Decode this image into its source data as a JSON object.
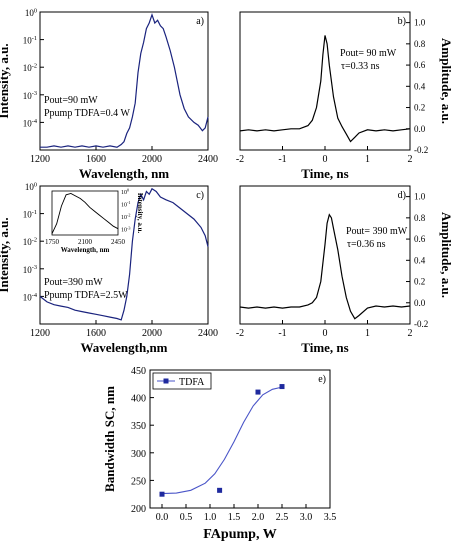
{
  "colors": {
    "spectrum": "#1a237e",
    "trace": "#000000",
    "fit": "#4a55c8",
    "marker": "#1f2a9e"
  },
  "chart_data": [
    {
      "id": "a",
      "type": "line",
      "panel_label": "a)",
      "xlabel": "Wavelength, nm",
      "ylabel": "Intensity, a.u.",
      "x_ticks": [
        "1200",
        "1600",
        "2000",
        "2400"
      ],
      "y_ticks": [
        "10^-4",
        "10^-3",
        "10^-2",
        "10^-1",
        "10^0"
      ],
      "xlim": [
        1200,
        2400
      ],
      "ylim_log10": [
        -5,
        0
      ],
      "yscale": "log",
      "annotations": [
        "Pout=90 mW",
        "Ppump TDFA=0.4 W"
      ],
      "x": [
        1200,
        1250,
        1300,
        1350,
        1400,
        1450,
        1500,
        1550,
        1600,
        1650,
        1700,
        1750,
        1780,
        1800,
        1820,
        1840,
        1860,
        1880,
        1900,
        1920,
        1940,
        1960,
        1980,
        2000,
        2020,
        2040,
        2060,
        2080,
        2100,
        2130,
        2160,
        2180,
        2200,
        2230,
        2260,
        2300,
        2330,
        2360,
        2380,
        2400
      ],
      "y": [
        -4.9,
        -4.9,
        -4.85,
        -4.9,
        -4.85,
        -4.9,
        -4.85,
        -4.9,
        -4.85,
        -4.9,
        -4.85,
        -4.9,
        -4.8,
        -4.7,
        -4.4,
        -4.2,
        -3.8,
        -3.3,
        -2.2,
        -1.5,
        -1.1,
        -0.6,
        -0.4,
        -0.1,
        -0.4,
        -0.3,
        -0.5,
        -0.6,
        -0.9,
        -1.4,
        -2.0,
        -2.5,
        -3.0,
        -3.5,
        -3.8,
        -4.0,
        -4.1,
        -4.3,
        -4.2,
        -3.8
      ]
    },
    {
      "id": "b",
      "type": "line",
      "panel_label": "b)",
      "xlabel": "Time, ns",
      "ylabel": "Amplitude, a.u.",
      "x_ticks": [
        "-2",
        "-1",
        "0",
        "1",
        "2"
      ],
      "y_ticks": [
        "-0.2",
        "0.0",
        "0.2",
        "0.4",
        "0.6",
        "0.8",
        "1.0"
      ],
      "xlim": [
        -2,
        2
      ],
      "ylim": [
        -0.2,
        1.1
      ],
      "annotations": [
        "Pout= 90 mW",
        "τ=0.33 ns"
      ],
      "x": [
        -2,
        -1.8,
        -1.6,
        -1.4,
        -1.2,
        -1.0,
        -0.8,
        -0.6,
        -0.4,
        -0.3,
        -0.2,
        -0.1,
        -0.05,
        0,
        0.05,
        0.1,
        0.2,
        0.3,
        0.4,
        0.5,
        0.6,
        0.7,
        0.8,
        1.0,
        1.2,
        1.4,
        1.6,
        1.8,
        2.0
      ],
      "y": [
        -0.02,
        -0.01,
        -0.02,
        -0.01,
        -0.02,
        -0.01,
        0.0,
        0.0,
        0.03,
        0.08,
        0.2,
        0.45,
        0.7,
        0.88,
        0.8,
        0.6,
        0.3,
        0.1,
        0.02,
        -0.05,
        -0.12,
        -0.08,
        -0.04,
        -0.01,
        -0.02,
        -0.01,
        -0.02,
        -0.01,
        0.0
      ]
    },
    {
      "id": "c",
      "type": "line",
      "panel_label": "c)",
      "xlabel": "Wavelength,nm",
      "ylabel": "Intensity, a.u.",
      "x_ticks": [
        "1200",
        "1600",
        "2000",
        "2400"
      ],
      "y_ticks": [
        "10^-4",
        "10^-3",
        "10^-2",
        "10^-1",
        "10^0"
      ],
      "xlim": [
        1200,
        2400
      ],
      "ylim_log10": [
        -5,
        0
      ],
      "yscale": "log",
      "annotations": [
        "Pout=390 mW",
        "Ppump TDFA=2.5W"
      ],
      "x": [
        1200,
        1250,
        1300,
        1350,
        1400,
        1450,
        1500,
        1550,
        1600,
        1650,
        1700,
        1750,
        1780,
        1800,
        1820,
        1840,
        1860,
        1880,
        1900,
        1920,
        1940,
        1960,
        1980,
        2000,
        2030,
        2060,
        2100,
        2150,
        2200,
        2250,
        2300,
        2350,
        2380,
        2400
      ],
      "y": [
        -4.0,
        -4.2,
        -4.3,
        -4.35,
        -4.4,
        -4.5,
        -4.55,
        -4.6,
        -4.65,
        -4.7,
        -4.75,
        -4.8,
        -4.85,
        -4.5,
        -4.0,
        -3.2,
        -2.0,
        -1.2,
        -0.6,
        -0.3,
        -0.5,
        -0.2,
        -0.3,
        -0.1,
        -0.2,
        -0.4,
        -0.5,
        -0.6,
        -0.8,
        -1.0,
        -1.2,
        -1.5,
        -1.8,
        -2.2
      ]
    },
    {
      "id": "c-inset",
      "type": "line",
      "xlabel": "Wavelength, nm",
      "ylabel": "Intensity, a.u.",
      "x_ticks": [
        "1750",
        "2100",
        "2450"
      ],
      "y_ticks": [
        "10^-3",
        "10^-2",
        "10^-1",
        "10^0"
      ],
      "xlim": [
        1750,
        2450
      ],
      "ylim_log10": [
        -3.5,
        0
      ],
      "yscale": "log",
      "x": [
        1750,
        1800,
        1850,
        1900,
        1950,
        2000,
        2050,
        2100,
        2150,
        2200,
        2250,
        2300,
        2350,
        2400,
        2450
      ],
      "y": [
        -3.4,
        -2.6,
        -1.2,
        -0.3,
        -0.2,
        -0.4,
        -0.6,
        -0.9,
        -1.3,
        -1.6,
        -1.9,
        -2.2,
        -2.5,
        -2.8,
        -3.0
      ]
    },
    {
      "id": "d",
      "type": "line",
      "panel_label": "d)",
      "xlabel": "Time, ns",
      "ylabel": "Amplitude, a.u.",
      "x_ticks": [
        "-2",
        "-1",
        "0",
        "1",
        "2"
      ],
      "y_ticks": [
        "-0.2",
        "0.0",
        "0.2",
        "0.4",
        "0.6",
        "0.8",
        "1.0"
      ],
      "xlim": [
        -2,
        2
      ],
      "ylim": [
        -0.2,
        1.1
      ],
      "annotations": [
        "Pout= 390 mW",
        "τ=0.36 ns"
      ],
      "x": [
        -2,
        -1.8,
        -1.6,
        -1.4,
        -1.2,
        -1.0,
        -0.8,
        -0.6,
        -0.4,
        -0.3,
        -0.2,
        -0.1,
        0,
        0.05,
        0.1,
        0.15,
        0.2,
        0.3,
        0.4,
        0.5,
        0.6,
        0.7,
        0.8,
        1.0,
        1.2,
        1.4,
        1.6,
        1.8,
        2.0
      ],
      "y": [
        -0.04,
        -0.05,
        -0.04,
        -0.05,
        -0.04,
        -0.05,
        -0.04,
        -0.04,
        -0.02,
        0.0,
        0.05,
        0.2,
        0.55,
        0.75,
        0.83,
        0.8,
        0.7,
        0.5,
        0.25,
        0.05,
        -0.08,
        -0.15,
        -0.12,
        -0.05,
        -0.03,
        -0.04,
        -0.03,
        -0.04,
        -0.03
      ]
    },
    {
      "id": "e",
      "type": "scatter",
      "panel_label": "e)",
      "xlabel": "FApump, W",
      "ylabel": "Bandwidth SC, nm",
      "x_ticks": [
        "0.0",
        "0.5",
        "1.0",
        "1.5",
        "2.0",
        "2.5",
        "3.0",
        "3.5"
      ],
      "y_ticks": [
        "200",
        "250",
        "300",
        "350",
        "400",
        "450"
      ],
      "xlim": [
        -0.25,
        3.5
      ],
      "ylim": [
        200,
        450
      ],
      "legend": "TDFA",
      "legend_position": "top-left",
      "points_x": [
        0.0,
        1.2,
        2.0,
        2.5
      ],
      "points_y": [
        225,
        232,
        410,
        420
      ],
      "fit_x": [
        0.0,
        0.3,
        0.6,
        0.9,
        1.1,
        1.3,
        1.5,
        1.7,
        1.9,
        2.1,
        2.3,
        2.5
      ],
      "fit_y": [
        226,
        227,
        232,
        245,
        262,
        288,
        320,
        355,
        385,
        405,
        415,
        419
      ]
    }
  ]
}
